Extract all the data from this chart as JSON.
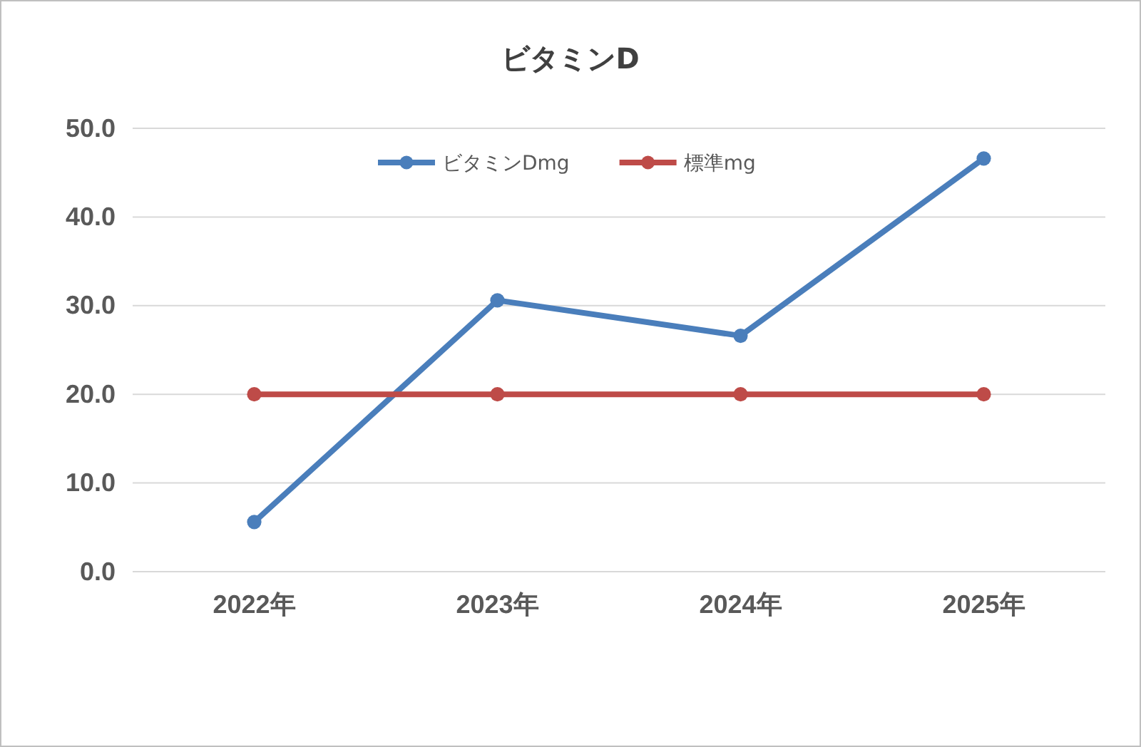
{
  "chart_data": {
    "type": "line",
    "title": "ビタミンD",
    "categories": [
      "2022年",
      "2023年",
      "2024年",
      "2025年"
    ],
    "series": [
      {
        "name": "ビタミンDmg",
        "color": "#4a7ebb",
        "values": [
          5.6,
          30.6,
          26.6,
          46.6
        ]
      },
      {
        "name": "標準mg",
        "color": "#be4b48",
        "values": [
          20,
          20,
          20,
          20
        ]
      }
    ],
    "ylim": [
      0,
      50
    ],
    "yticks": [
      {
        "value": 0,
        "label": "0.0"
      },
      {
        "value": 10,
        "label": "10.0"
      },
      {
        "value": 20,
        "label": "20.0"
      },
      {
        "value": 30,
        "label": "30.0"
      },
      {
        "value": 40,
        "label": "40.0"
      },
      {
        "value": 50,
        "label": "50.0"
      }
    ],
    "grid": "y",
    "legend": "top",
    "marker": "circle",
    "line_style": "solid"
  }
}
